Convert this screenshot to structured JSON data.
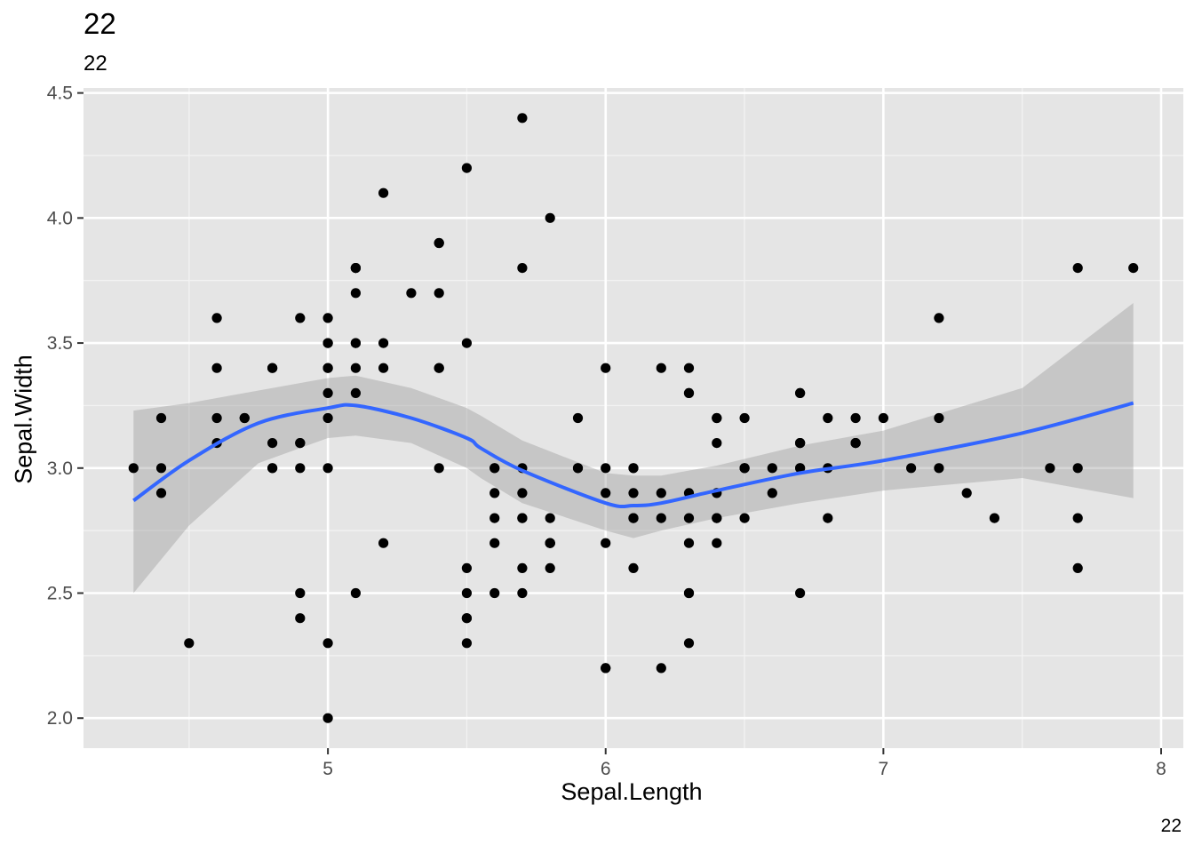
{
  "chart_data": {
    "type": "scatter",
    "title": "22",
    "subtitle": "22",
    "caption": "22",
    "xlabel": "Sepal.Length",
    "ylabel": "Sepal.Width",
    "xlim": [
      4.12,
      8.08
    ],
    "ylim": [
      1.88,
      4.52
    ],
    "x_ticks": [
      5,
      6,
      7,
      8
    ],
    "x_tick_labels": [
      "5",
      "6",
      "7",
      "8"
    ],
    "y_ticks": [
      2.0,
      2.5,
      3.0,
      3.5,
      4.0,
      4.5
    ],
    "y_tick_labels": [
      "2.0",
      "2.5",
      "3.0",
      "3.5",
      "4.0",
      "4.5"
    ],
    "grid": true,
    "colors": {
      "panel": "#e5e5e5",
      "grid_major": "#ffffff",
      "points": "#000000",
      "smooth_line": "#3366ff",
      "ribbon": "#999999"
    },
    "points": [
      [
        5.1,
        3.5
      ],
      [
        4.9,
        3.0
      ],
      [
        4.7,
        3.2
      ],
      [
        4.6,
        3.1
      ],
      [
        5.0,
        3.6
      ],
      [
        5.4,
        3.9
      ],
      [
        4.6,
        3.4
      ],
      [
        5.0,
        3.4
      ],
      [
        4.4,
        2.9
      ],
      [
        4.9,
        3.1
      ],
      [
        5.4,
        3.7
      ],
      [
        4.8,
        3.4
      ],
      [
        4.8,
        3.0
      ],
      [
        4.3,
        3.0
      ],
      [
        5.8,
        4.0
      ],
      [
        5.7,
        4.4
      ],
      [
        5.4,
        3.9
      ],
      [
        5.1,
        3.5
      ],
      [
        5.7,
        3.8
      ],
      [
        5.1,
        3.8
      ],
      [
        5.4,
        3.4
      ],
      [
        5.1,
        3.7
      ],
      [
        4.6,
        3.6
      ],
      [
        5.1,
        3.3
      ],
      [
        4.8,
        3.4
      ],
      [
        5.0,
        3.0
      ],
      [
        5.0,
        3.4
      ],
      [
        5.2,
        3.5
      ],
      [
        5.2,
        3.4
      ],
      [
        4.7,
        3.2
      ],
      [
        4.8,
        3.1
      ],
      [
        5.4,
        3.4
      ],
      [
        5.2,
        4.1
      ],
      [
        5.5,
        4.2
      ],
      [
        4.9,
        3.1
      ],
      [
        5.0,
        3.2
      ],
      [
        5.5,
        3.5
      ],
      [
        4.9,
        3.6
      ],
      [
        4.4,
        3.0
      ],
      [
        5.1,
        3.4
      ],
      [
        5.0,
        3.5
      ],
      [
        4.5,
        2.3
      ],
      [
        4.4,
        3.2
      ],
      [
        5.0,
        3.5
      ],
      [
        5.1,
        3.8
      ],
      [
        4.8,
        3.0
      ],
      [
        5.1,
        3.8
      ],
      [
        4.6,
        3.2
      ],
      [
        5.3,
        3.7
      ],
      [
        5.0,
        3.3
      ],
      [
        7.0,
        3.2
      ],
      [
        6.4,
        3.2
      ],
      [
        6.9,
        3.1
      ],
      [
        5.5,
        2.3
      ],
      [
        6.5,
        2.8
      ],
      [
        5.7,
        2.8
      ],
      [
        6.3,
        3.3
      ],
      [
        4.9,
        2.4
      ],
      [
        6.6,
        2.9
      ],
      [
        5.2,
        2.7
      ],
      [
        5.0,
        2.0
      ],
      [
        5.9,
        3.0
      ],
      [
        6.0,
        2.2
      ],
      [
        6.1,
        2.9
      ],
      [
        5.6,
        2.9
      ],
      [
        6.7,
        3.1
      ],
      [
        5.6,
        3.0
      ],
      [
        5.8,
        2.7
      ],
      [
        6.2,
        2.2
      ],
      [
        5.6,
        2.5
      ],
      [
        5.9,
        3.2
      ],
      [
        6.1,
        2.8
      ],
      [
        6.3,
        2.5
      ],
      [
        6.1,
        2.8
      ],
      [
        6.4,
        2.9
      ],
      [
        6.6,
        3.0
      ],
      [
        6.8,
        2.8
      ],
      [
        6.7,
        3.0
      ],
      [
        6.0,
        2.9
      ],
      [
        5.7,
        2.6
      ],
      [
        5.5,
        2.4
      ],
      [
        5.5,
        2.4
      ],
      [
        5.8,
        2.7
      ],
      [
        6.0,
        2.7
      ],
      [
        5.4,
        3.0
      ],
      [
        6.0,
        3.4
      ],
      [
        6.7,
        3.1
      ],
      [
        6.3,
        2.3
      ],
      [
        5.6,
        3.0
      ],
      [
        5.5,
        2.5
      ],
      [
        5.5,
        2.6
      ],
      [
        6.1,
        3.0
      ],
      [
        5.8,
        2.6
      ],
      [
        5.0,
        2.3
      ],
      [
        5.6,
        2.7
      ],
      [
        5.7,
        3.0
      ],
      [
        5.7,
        2.9
      ],
      [
        6.2,
        2.9
      ],
      [
        5.1,
        2.5
      ],
      [
        5.7,
        2.8
      ],
      [
        6.3,
        3.3
      ],
      [
        5.8,
        2.7
      ],
      [
        7.1,
        3.0
      ],
      [
        6.3,
        2.9
      ],
      [
        6.5,
        3.0
      ],
      [
        7.6,
        3.0
      ],
      [
        4.9,
        2.5
      ],
      [
        7.3,
        2.9
      ],
      [
        6.7,
        2.5
      ],
      [
        7.2,
        3.6
      ],
      [
        6.5,
        3.2
      ],
      [
        6.4,
        2.7
      ],
      [
        6.8,
        3.0
      ],
      [
        5.7,
        2.5
      ],
      [
        5.8,
        2.8
      ],
      [
        6.4,
        3.2
      ],
      [
        6.5,
        3.0
      ],
      [
        7.7,
        3.8
      ],
      [
        7.7,
        2.6
      ],
      [
        6.0,
        2.2
      ],
      [
        6.9,
        3.2
      ],
      [
        5.6,
        2.8
      ],
      [
        7.7,
        2.8
      ],
      [
        6.3,
        2.7
      ],
      [
        6.7,
        3.3
      ],
      [
        7.2,
        3.2
      ],
      [
        6.2,
        2.8
      ],
      [
        6.1,
        3.0
      ],
      [
        6.4,
        2.8
      ],
      [
        7.2,
        3.0
      ],
      [
        7.4,
        2.8
      ],
      [
        7.9,
        3.8
      ],
      [
        6.4,
        2.8
      ],
      [
        6.3,
        2.8
      ],
      [
        6.1,
        2.6
      ],
      [
        7.7,
        3.0
      ],
      [
        6.3,
        3.4
      ],
      [
        6.4,
        3.1
      ],
      [
        6.0,
        3.0
      ],
      [
        6.9,
        3.1
      ],
      [
        6.7,
        3.1
      ],
      [
        6.9,
        3.1
      ],
      [
        5.8,
        2.7
      ],
      [
        6.8,
        3.2
      ],
      [
        6.7,
        3.3
      ],
      [
        6.7,
        3.0
      ],
      [
        6.3,
        2.5
      ],
      [
        6.5,
        3.0
      ],
      [
        6.2,
        3.4
      ],
      [
        5.9,
        3.0
      ]
    ],
    "smooth": {
      "method": "loess",
      "x": [
        4.3,
        4.5,
        4.75,
        5.0,
        5.1,
        5.3,
        5.5,
        5.55,
        5.7,
        6.0,
        6.1,
        6.2,
        6.4,
        6.7,
        7.0,
        7.5,
        7.9
      ],
      "y": [
        2.87,
        3.03,
        3.18,
        3.24,
        3.25,
        3.2,
        3.12,
        3.08,
        2.99,
        2.86,
        2.85,
        2.86,
        2.91,
        2.98,
        3.03,
        3.14,
        3.26
      ],
      "lower": [
        2.5,
        2.77,
        3.02,
        3.12,
        3.13,
        3.1,
        3.0,
        2.96,
        2.86,
        2.75,
        2.72,
        2.75,
        2.8,
        2.86,
        2.91,
        2.96,
        2.88
      ],
      "upper": [
        3.23,
        3.26,
        3.31,
        3.36,
        3.37,
        3.32,
        3.24,
        3.21,
        3.11,
        2.98,
        2.97,
        2.97,
        3.01,
        3.09,
        3.15,
        3.32,
        3.66
      ]
    }
  }
}
